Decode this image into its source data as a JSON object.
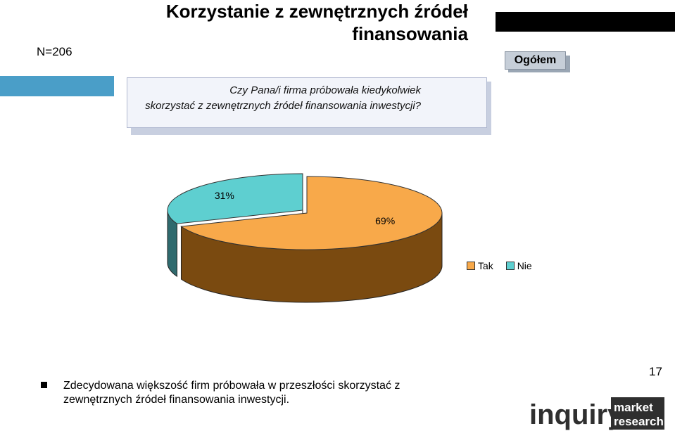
{
  "header": {
    "sample_size": "N=206",
    "title_line1": "Korzystanie z zewnętrznych źródeł",
    "title_line2": "finansowania",
    "segment_label": "Ogółem"
  },
  "question": {
    "line1": "Czy Pana/i firma próbowała kiedykolwiek",
    "line2": "skorzystać z zewnętrznych źródeł finansowania inwestycji?"
  },
  "chart_data": {
    "type": "pie",
    "style": "3d",
    "slices": [
      {
        "label": "Tak",
        "value": 69,
        "label_text": "69%",
        "color": "#f8a94a",
        "side_color": "#7a4a10"
      },
      {
        "label": "Nie",
        "value": 31,
        "label_text": "31%",
        "color": "#5ecfd0",
        "side_color": "#2f6a6e"
      }
    ],
    "legend": [
      "Tak",
      "Nie"
    ],
    "legend_position": "bottom-right"
  },
  "summary": {
    "line1": "Zdecydowana większość firm próbowała w przeszłości skorzystać z",
    "line2": "zewnętrznych źródeł finansowania inwestycji."
  },
  "footer": {
    "page_number": "17",
    "logo_text_main": "inquiry",
    "logo_text_box1": "market",
    "logo_text_box2": "research"
  },
  "colors": {
    "accent_band": "#4a9ec8",
    "badge_bg": "#c6ced8"
  }
}
